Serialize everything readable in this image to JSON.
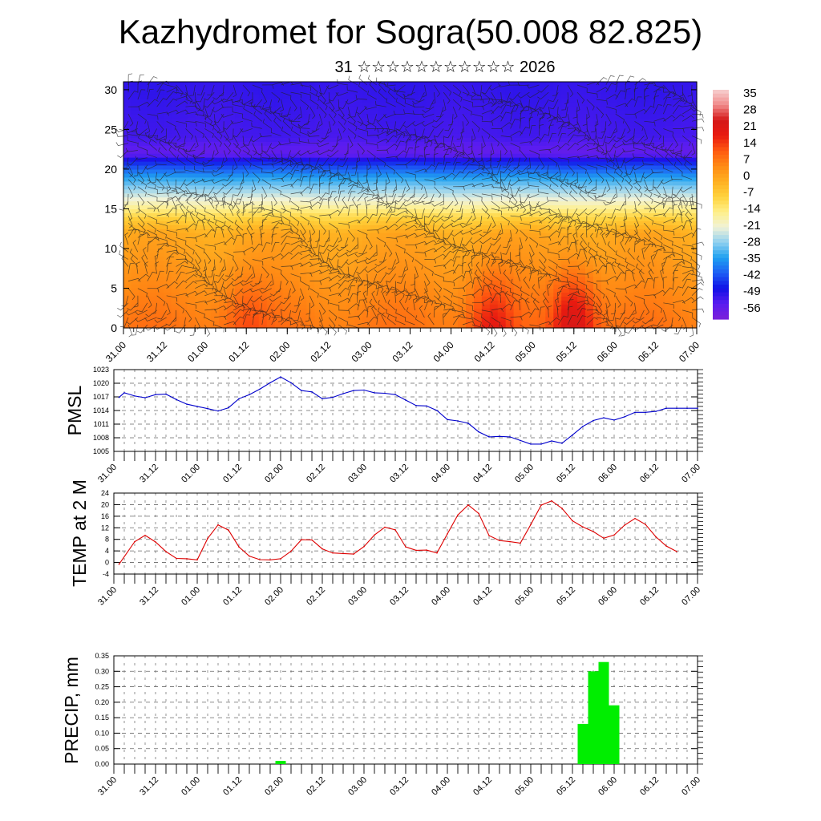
{
  "header": {
    "title": "Kazhydromet for Sogra(50.008 82.825)",
    "subtitle": "31 ☆☆☆☆☆☆☆☆☆☆☆ 2026"
  },
  "time_ticks": [
    "31.00",
    "31.12",
    "01.00",
    "01.12",
    "02.00",
    "02.12",
    "03.00",
    "03.12",
    "04.00",
    "04.12",
    "05.00",
    "05.12",
    "06.00",
    "06.12",
    "07.00"
  ],
  "chart_data": [
    {
      "type": "heatmap",
      "title": "",
      "xlabel": "",
      "ylabel": "",
      "yticks": [
        "0",
        "5",
        "10",
        "15",
        "20",
        "25",
        "30"
      ],
      "ylim": [
        0,
        31
      ],
      "colorbar": {
        "labels": [
          "35",
          "28",
          "21",
          "14",
          "7",
          "0",
          "-7",
          "-14",
          "-21",
          "-28",
          "-35",
          "-42",
          "-49",
          "-56"
        ],
        "range": [
          -63,
          42
        ],
        "colors": [
          "#7a1fd9",
          "#5a1cf0",
          "#1010e6",
          "#1e5ef5",
          "#1ea0f0",
          "#8fd0f0",
          "#f0f2d8",
          "#fff08a",
          "#ffd23c",
          "#ffb020",
          "#ff8a14",
          "#ff5a10",
          "#e81a10",
          "#d41818",
          "#f08a8a",
          "#f7d0d0"
        ]
      },
      "temperature_bands": [
        {
          "level": 0,
          "value": 10
        },
        {
          "level": 3,
          "value": 8
        },
        {
          "level": 8,
          "value": 4
        },
        {
          "level": 12,
          "value": 1
        },
        {
          "level": 14,
          "value": -8
        },
        {
          "level": 16,
          "value": -20
        },
        {
          "level": 19,
          "value": -35
        },
        {
          "level": 21,
          "value": -48
        },
        {
          "level": 22,
          "value": -58
        },
        {
          "level": 24,
          "value": -54
        },
        {
          "level": 31,
          "value": -52
        }
      ],
      "warm_cores": [
        {
          "x_tick": "01.12",
          "level": 2,
          "value": 16
        },
        {
          "x_tick": "04.12",
          "level": 2,
          "value": 22
        },
        {
          "x_tick": "05.12",
          "level": 3,
          "value": 28
        }
      ],
      "wind_barbs": "dense barbs on every grid point"
    },
    {
      "type": "line",
      "ylabel": "PMSL",
      "yticks": [
        "1005",
        "1008",
        "1011",
        "1014",
        "1017",
        "1020",
        "1023"
      ],
      "ylim": [
        1005,
        1023
      ],
      "color": "#0000cc",
      "x": [
        0.25,
        0.5,
        1,
        1.5,
        2,
        2.5,
        3,
        3.5,
        4,
        4.5,
        5,
        5.5,
        6,
        6.5,
        7,
        7.5,
        8,
        8.5,
        9,
        9.5,
        10,
        10.5,
        11,
        11.5,
        12,
        12.5,
        13,
        13.5,
        14,
        14.5,
        15,
        15.5,
        16,
        16.5,
        17,
        17.5,
        18,
        18.5,
        19,
        19.5,
        20,
        20.5,
        21,
        21.5,
        22,
        22.5,
        23,
        23.5,
        24,
        24.5,
        25,
        25.5,
        26,
        26.5,
        27,
        27.5,
        28
      ],
      "values": [
        1016.9,
        1017.9,
        1017.2,
        1016.8,
        1017.5,
        1017.6,
        1016.4,
        1015.4,
        1014.9,
        1014.4,
        1013.9,
        1014.6,
        1016.6,
        1017.5,
        1018.7,
        1020.1,
        1021.4,
        1020.1,
        1018.4,
        1018.1,
        1016.6,
        1016.9,
        1017.7,
        1018.4,
        1018.5,
        1017.9,
        1017.8,
        1017.5,
        1016.3,
        1015.1,
        1015.0,
        1014.0,
        1012.0,
        1011.7,
        1011.2,
        1009.3,
        1008.2,
        1008.3,
        1008.2,
        1007.4,
        1006.6,
        1006.6,
        1007.3,
        1006.8,
        1008.6,
        1010.5,
        1011.8,
        1012.4,
        1011.9,
        1012.6,
        1013.6,
        1013.6,
        1013.8,
        1014.5,
        1014.5,
        1014.5,
        1014.5
      ]
    },
    {
      "type": "line",
      "ylabel": "TEMP at 2 M",
      "yticks": [
        "-4",
        "0",
        "4",
        "8",
        "12",
        "16",
        "20",
        "24"
      ],
      "ylim": [
        -4,
        24
      ],
      "color": "#dd0000",
      "x": [
        0.25,
        1,
        1.5,
        2,
        2.5,
        3,
        3.5,
        4,
        4.5,
        5,
        5.5,
        6,
        6.5,
        7,
        7.5,
        8,
        8.5,
        9,
        9.5,
        10,
        10.5,
        11,
        11.5,
        12,
        12.5,
        13,
        13.5,
        14,
        14.5,
        15,
        15.5,
        16,
        16.5,
        17,
        17.5,
        18,
        18.5,
        19,
        19.5,
        20,
        20.5,
        21,
        21.5,
        22,
        22.5,
        23,
        23.5,
        24,
        24.5,
        25,
        25.5,
        26,
        26.5,
        27
      ],
      "values": [
        -0.6,
        7.2,
        9.4,
        7.1,
        3.8,
        1.4,
        1.3,
        0.9,
        8.3,
        13.0,
        11.2,
        5.4,
        2.2,
        1.0,
        0.9,
        1.3,
        3.9,
        7.9,
        7.8,
        4.7,
        3.3,
        3.1,
        2.9,
        5.5,
        9.5,
        12.2,
        11.3,
        5.4,
        4.2,
        4.3,
        3.3,
        9.9,
        16.4,
        19.9,
        17.0,
        9.3,
        7.6,
        7.2,
        6.7,
        13.1,
        19.8,
        21.3,
        18.7,
        14.4,
        12.3,
        10.7,
        8.4,
        9.5,
        12.9,
        15.2,
        13.2,
        8.9,
        5.7,
        3.8
      ]
    },
    {
      "type": "bar",
      "ylabel": "PRECIP, mm",
      "yticks": [
        "0.00",
        "0.05",
        "0.10",
        "0.15",
        "0.20",
        "0.25",
        "0.30",
        "0.35"
      ],
      "ylim": [
        0,
        0.35
      ],
      "color": "#00ee00",
      "bars": [
        {
          "x": 8.0,
          "value": 0.01
        },
        {
          "x": 22.5,
          "value": 0.13
        },
        {
          "x": 23.0,
          "value": 0.3
        },
        {
          "x": 23.5,
          "value": 0.33
        },
        {
          "x": 24.0,
          "value": 0.19
        }
      ]
    }
  ]
}
